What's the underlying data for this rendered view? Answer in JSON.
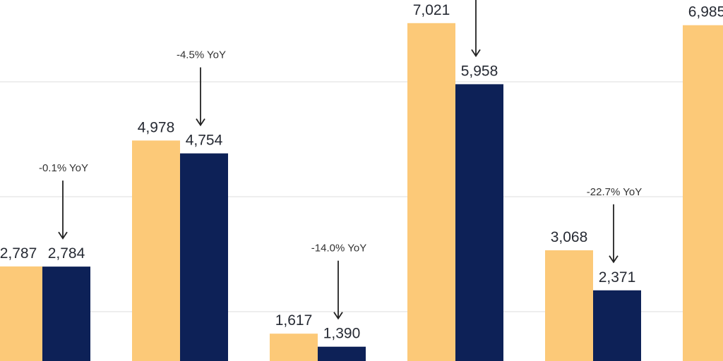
{
  "chart_data": {
    "type": "bar",
    "title": "",
    "xlabel": "",
    "ylabel": "",
    "grid": true,
    "legend": "none",
    "categories": [
      "",
      "",
      "",
      "",
      "",
      ""
    ],
    "series": [
      {
        "color": "#FCC978",
        "values": [
          2787,
          4978,
          1617,
          7021,
          3068,
          6985
        ]
      },
      {
        "color": "#0D2157",
        "values": [
          2784,
          4754,
          1390,
          5958,
          2371,
          null
        ]
      }
    ],
    "value_labels": [
      [
        "2,787",
        "4,978",
        "1,617",
        "7,021",
        "3,068",
        "6,985"
      ],
      [
        "2,784",
        "4,754",
        "1,390",
        "5,958",
        "2,371",
        ""
      ]
    ],
    "annotations": [
      "-0.1% YoY",
      "-4.5% YoY",
      "-14.0% YoY",
      "",
      "-22.7% YoY",
      ""
    ],
    "gridlines": [
      2000,
      4000,
      6000
    ]
  }
}
